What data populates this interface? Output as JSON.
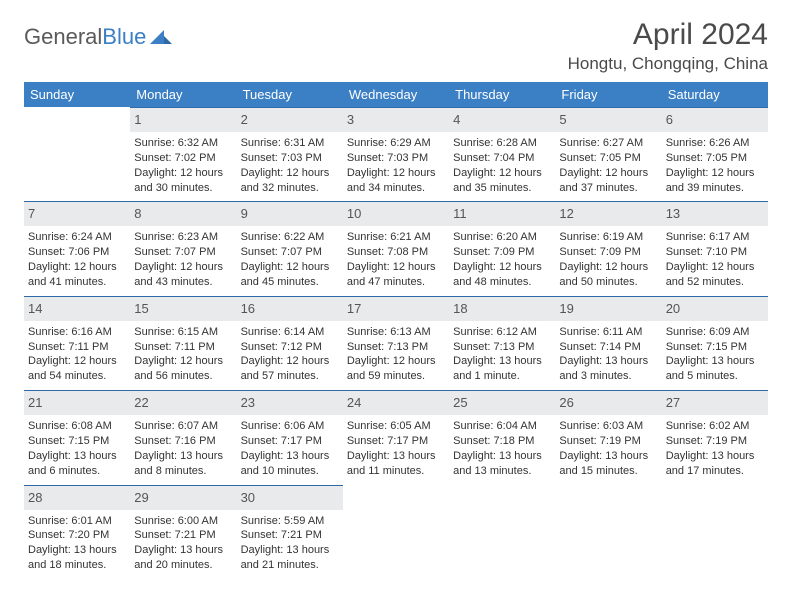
{
  "brand": {
    "part1": "General",
    "part2": "Blue"
  },
  "title": "April 2024",
  "location": "Hongtu, Chongqing, China",
  "colors": {
    "header_bg": "#3b7fc4",
    "header_text": "#ffffff",
    "daynum_bg": "#e9eaeb",
    "daynum_border": "#2f6aa8",
    "text": "#333333",
    "logo_gray": "#5a5a5a",
    "logo_blue": "#3b7fc4"
  },
  "weekdays": [
    "Sunday",
    "Monday",
    "Tuesday",
    "Wednesday",
    "Thursday",
    "Friday",
    "Saturday"
  ],
  "weeks": [
    [
      {
        "blank": true
      },
      {
        "day": "1",
        "sunrise": "Sunrise: 6:32 AM",
        "sunset": "Sunset: 7:02 PM",
        "daylight": "Daylight: 12 hours and 30 minutes."
      },
      {
        "day": "2",
        "sunrise": "Sunrise: 6:31 AM",
        "sunset": "Sunset: 7:03 PM",
        "daylight": "Daylight: 12 hours and 32 minutes."
      },
      {
        "day": "3",
        "sunrise": "Sunrise: 6:29 AM",
        "sunset": "Sunset: 7:03 PM",
        "daylight": "Daylight: 12 hours and 34 minutes."
      },
      {
        "day": "4",
        "sunrise": "Sunrise: 6:28 AM",
        "sunset": "Sunset: 7:04 PM",
        "daylight": "Daylight: 12 hours and 35 minutes."
      },
      {
        "day": "5",
        "sunrise": "Sunrise: 6:27 AM",
        "sunset": "Sunset: 7:05 PM",
        "daylight": "Daylight: 12 hours and 37 minutes."
      },
      {
        "day": "6",
        "sunrise": "Sunrise: 6:26 AM",
        "sunset": "Sunset: 7:05 PM",
        "daylight": "Daylight: 12 hours and 39 minutes."
      }
    ],
    [
      {
        "day": "7",
        "sunrise": "Sunrise: 6:24 AM",
        "sunset": "Sunset: 7:06 PM",
        "daylight": "Daylight: 12 hours and 41 minutes."
      },
      {
        "day": "8",
        "sunrise": "Sunrise: 6:23 AM",
        "sunset": "Sunset: 7:07 PM",
        "daylight": "Daylight: 12 hours and 43 minutes."
      },
      {
        "day": "9",
        "sunrise": "Sunrise: 6:22 AM",
        "sunset": "Sunset: 7:07 PM",
        "daylight": "Daylight: 12 hours and 45 minutes."
      },
      {
        "day": "10",
        "sunrise": "Sunrise: 6:21 AM",
        "sunset": "Sunset: 7:08 PM",
        "daylight": "Daylight: 12 hours and 47 minutes."
      },
      {
        "day": "11",
        "sunrise": "Sunrise: 6:20 AM",
        "sunset": "Sunset: 7:09 PM",
        "daylight": "Daylight: 12 hours and 48 minutes."
      },
      {
        "day": "12",
        "sunrise": "Sunrise: 6:19 AM",
        "sunset": "Sunset: 7:09 PM",
        "daylight": "Daylight: 12 hours and 50 minutes."
      },
      {
        "day": "13",
        "sunrise": "Sunrise: 6:17 AM",
        "sunset": "Sunset: 7:10 PM",
        "daylight": "Daylight: 12 hours and 52 minutes."
      }
    ],
    [
      {
        "day": "14",
        "sunrise": "Sunrise: 6:16 AM",
        "sunset": "Sunset: 7:11 PM",
        "daylight": "Daylight: 12 hours and 54 minutes."
      },
      {
        "day": "15",
        "sunrise": "Sunrise: 6:15 AM",
        "sunset": "Sunset: 7:11 PM",
        "daylight": "Daylight: 12 hours and 56 minutes."
      },
      {
        "day": "16",
        "sunrise": "Sunrise: 6:14 AM",
        "sunset": "Sunset: 7:12 PM",
        "daylight": "Daylight: 12 hours and 57 minutes."
      },
      {
        "day": "17",
        "sunrise": "Sunrise: 6:13 AM",
        "sunset": "Sunset: 7:13 PM",
        "daylight": "Daylight: 12 hours and 59 minutes."
      },
      {
        "day": "18",
        "sunrise": "Sunrise: 6:12 AM",
        "sunset": "Sunset: 7:13 PM",
        "daylight": "Daylight: 13 hours and 1 minute."
      },
      {
        "day": "19",
        "sunrise": "Sunrise: 6:11 AM",
        "sunset": "Sunset: 7:14 PM",
        "daylight": "Daylight: 13 hours and 3 minutes."
      },
      {
        "day": "20",
        "sunrise": "Sunrise: 6:09 AM",
        "sunset": "Sunset: 7:15 PM",
        "daylight": "Daylight: 13 hours and 5 minutes."
      }
    ],
    [
      {
        "day": "21",
        "sunrise": "Sunrise: 6:08 AM",
        "sunset": "Sunset: 7:15 PM",
        "daylight": "Daylight: 13 hours and 6 minutes."
      },
      {
        "day": "22",
        "sunrise": "Sunrise: 6:07 AM",
        "sunset": "Sunset: 7:16 PM",
        "daylight": "Daylight: 13 hours and 8 minutes."
      },
      {
        "day": "23",
        "sunrise": "Sunrise: 6:06 AM",
        "sunset": "Sunset: 7:17 PM",
        "daylight": "Daylight: 13 hours and 10 minutes."
      },
      {
        "day": "24",
        "sunrise": "Sunrise: 6:05 AM",
        "sunset": "Sunset: 7:17 PM",
        "daylight": "Daylight: 13 hours and 11 minutes."
      },
      {
        "day": "25",
        "sunrise": "Sunrise: 6:04 AM",
        "sunset": "Sunset: 7:18 PM",
        "daylight": "Daylight: 13 hours and 13 minutes."
      },
      {
        "day": "26",
        "sunrise": "Sunrise: 6:03 AM",
        "sunset": "Sunset: 7:19 PM",
        "daylight": "Daylight: 13 hours and 15 minutes."
      },
      {
        "day": "27",
        "sunrise": "Sunrise: 6:02 AM",
        "sunset": "Sunset: 7:19 PM",
        "daylight": "Daylight: 13 hours and 17 minutes."
      }
    ],
    [
      {
        "day": "28",
        "sunrise": "Sunrise: 6:01 AM",
        "sunset": "Sunset: 7:20 PM",
        "daylight": "Daylight: 13 hours and 18 minutes."
      },
      {
        "day": "29",
        "sunrise": "Sunrise: 6:00 AM",
        "sunset": "Sunset: 7:21 PM",
        "daylight": "Daylight: 13 hours and 20 minutes."
      },
      {
        "day": "30",
        "sunrise": "Sunrise: 5:59 AM",
        "sunset": "Sunset: 7:21 PM",
        "daylight": "Daylight: 13 hours and 21 minutes."
      },
      {
        "blank": true
      },
      {
        "blank": true
      },
      {
        "blank": true
      },
      {
        "blank": true
      }
    ]
  ]
}
